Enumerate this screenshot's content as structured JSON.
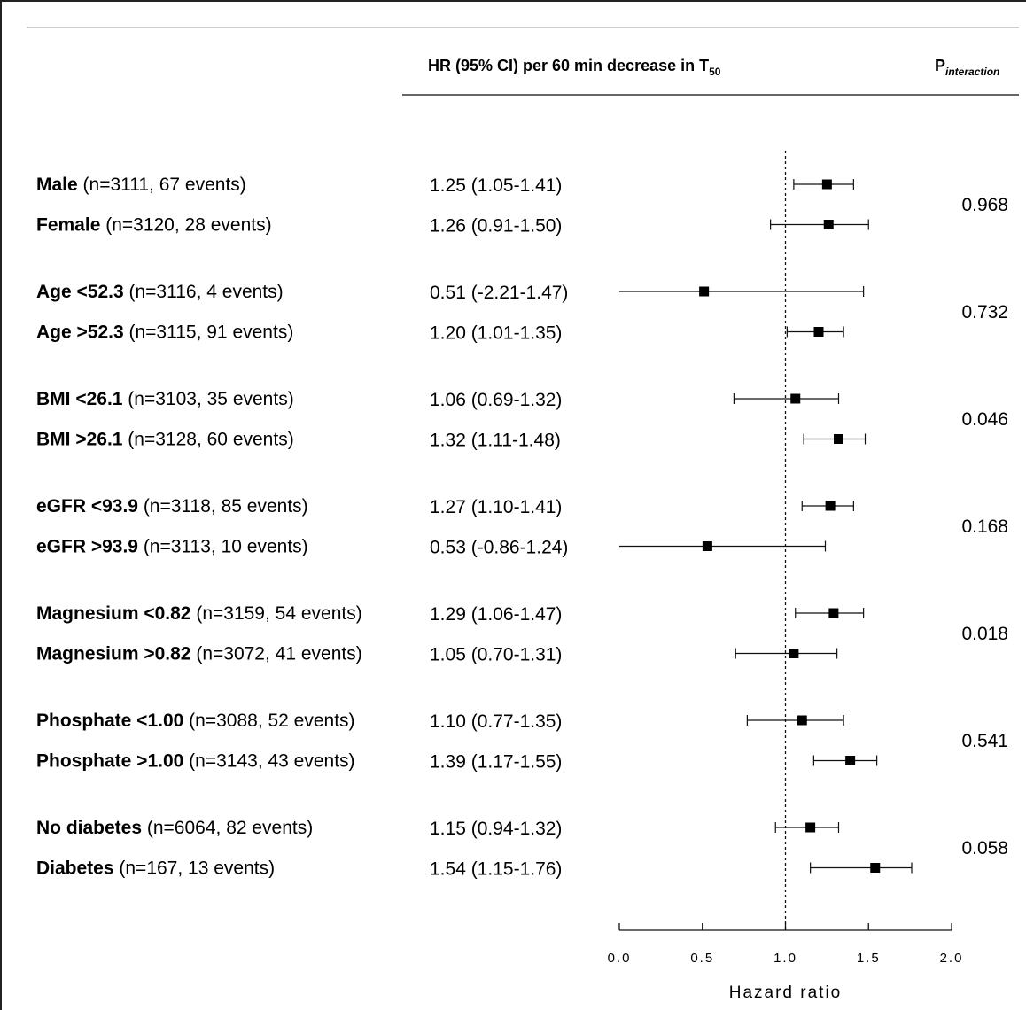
{
  "header": {
    "hr_col_title": "HR (95% CI) per 60 min decrease in T",
    "hr_col_sub": "50",
    "p_col_title": "P",
    "p_col_sub": "interaction"
  },
  "chart_data": {
    "type": "forest",
    "xlabel": "Hazard ratio",
    "xlim": [
      0.0,
      2.0
    ],
    "xticks": [
      "0.0",
      "0.5",
      "1.0",
      "1.5",
      "2.0"
    ],
    "reference_line": 1.0,
    "rows": [
      {
        "bold": "Male",
        "detail": "  (n=3111, 67 events)",
        "hr_text": "1.25 (1.05-1.41)",
        "hr": 1.25,
        "lo": 1.05,
        "hi": 1.41
      },
      {
        "bold": "Female",
        "detail": " (n=3120, 28 events)",
        "hr_text": "1.26 (0.91-1.50)",
        "hr": 1.26,
        "lo": 0.91,
        "hi": 1.5
      },
      {
        "bold": "Age <52.3",
        "detail": " (n=3116, 4 events)",
        "hr_text": "0.51 (-2.21-1.47)",
        "hr": 0.51,
        "lo": -2.21,
        "hi": 1.47
      },
      {
        "bold": "Age >52.3",
        "detail": " (n=3115, 91 events)",
        "hr_text": "1.20 (1.01-1.35)",
        "hr": 1.2,
        "lo": 1.01,
        "hi": 1.35
      },
      {
        "bold": "BMI <26.1",
        "detail": " (n=3103, 35 events)",
        "hr_text": "1.06 (0.69-1.32)",
        "hr": 1.06,
        "lo": 0.69,
        "hi": 1.32
      },
      {
        "bold": "BMI >26.1",
        "detail": " (n=3128, 60 events)",
        "hr_text": "1.32 (1.11-1.48)",
        "hr": 1.32,
        "lo": 1.11,
        "hi": 1.48
      },
      {
        "bold": "eGFR <93.9",
        "detail": " (n=3118, 85 events)",
        "hr_text": "1.27 (1.10-1.41)",
        "hr": 1.27,
        "lo": 1.1,
        "hi": 1.41
      },
      {
        "bold": "eGFR >93.9",
        "detail": " (n=3113, 10 events)",
        "hr_text": "0.53 (-0.86-1.24)",
        "hr": 0.53,
        "lo": -0.86,
        "hi": 1.24
      },
      {
        "bold": "Magnesium <0.82",
        "detail": " (n=3159, 54 events)",
        "hr_text": "1.29 (1.06-1.47)",
        "hr": 1.29,
        "lo": 1.06,
        "hi": 1.47
      },
      {
        "bold": "Magnesium >0.82",
        "detail": " (n=3072, 41 events)",
        "hr_text": "1.05 (0.70-1.31)",
        "hr": 1.05,
        "lo": 0.7,
        "hi": 1.31
      },
      {
        "bold": "Phosphate <1.00",
        "detail": " (n=3088, 52 events)",
        "hr_text": "1.10 (0.77-1.35)",
        "hr": 1.1,
        "lo": 0.77,
        "hi": 1.35
      },
      {
        "bold": "Phosphate >1.00",
        "detail": " (n=3143, 43 events)",
        "hr_text": "1.39 (1.17-1.55)",
        "hr": 1.39,
        "lo": 1.17,
        "hi": 1.55
      },
      {
        "bold": "No diabetes",
        "detail": " (n=6064, 82 events)",
        "hr_text": "1.15 (0.94-1.32)",
        "hr": 1.15,
        "lo": 0.94,
        "hi": 1.32
      },
      {
        "bold": "Diabetes",
        "detail": " (n=167, 13 events)",
        "hr_text": "1.54 (1.15-1.76)",
        "hr": 1.54,
        "lo": 1.15,
        "hi": 1.76
      }
    ],
    "p_interaction": [
      "0.968",
      "0.732",
      "0.046",
      "0.168",
      "0.018",
      "0.541",
      "0.058"
    ]
  }
}
